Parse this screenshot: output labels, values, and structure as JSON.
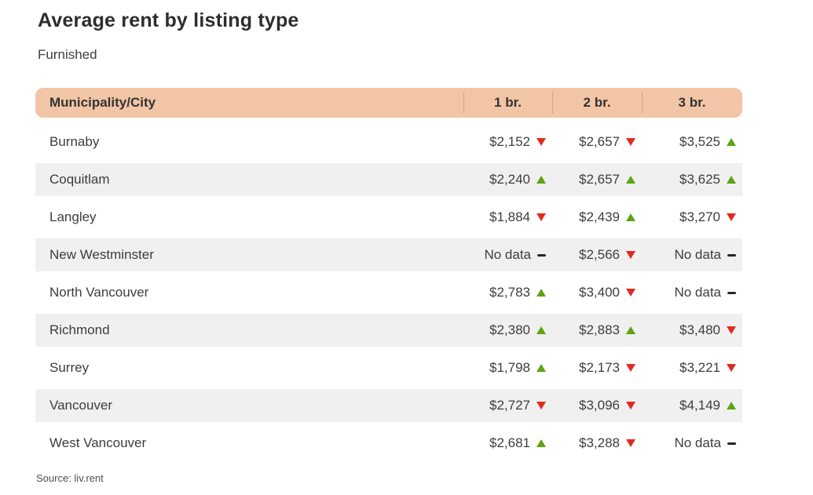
{
  "chart_data": {
    "type": "table",
    "title": "Average rent by listing type",
    "subtitle": "Furnished",
    "source": "Source: liv.rent",
    "header": {
      "city_column": "Municipality/City",
      "value_columns": [
        "1 br.",
        "2 br.",
        "3 br."
      ]
    },
    "rows": [
      {
        "city": "Burnaby",
        "cells": [
          {
            "text": "$2,152",
            "trend": "down"
          },
          {
            "text": "$2,657",
            "trend": "down"
          },
          {
            "text": "$3,525",
            "trend": "up"
          }
        ]
      },
      {
        "city": "Coquitlam",
        "cells": [
          {
            "text": "$2,240",
            "trend": "up"
          },
          {
            "text": "$2,657",
            "trend": "up"
          },
          {
            "text": "$3,625",
            "trend": "up"
          }
        ]
      },
      {
        "city": "Langley",
        "cells": [
          {
            "text": "$1,884",
            "trend": "down"
          },
          {
            "text": "$2,439",
            "trend": "up"
          },
          {
            "text": "$3,270",
            "trend": "down"
          }
        ]
      },
      {
        "city": "New Westminster",
        "cells": [
          {
            "text": "No data",
            "trend": "flat"
          },
          {
            "text": "$2,566",
            "trend": "down"
          },
          {
            "text": "No data",
            "trend": "flat"
          }
        ]
      },
      {
        "city": "North Vancouver",
        "cells": [
          {
            "text": "$2,783",
            "trend": "up"
          },
          {
            "text": "$3,400",
            "trend": "down"
          },
          {
            "text": "No data",
            "trend": "flat"
          }
        ]
      },
      {
        "city": "Richmond",
        "cells": [
          {
            "text": "$2,380",
            "trend": "up"
          },
          {
            "text": "$2,883",
            "trend": "up"
          },
          {
            "text": "$3,480",
            "trend": "down"
          }
        ]
      },
      {
        "city": "Surrey",
        "cells": [
          {
            "text": "$1,798",
            "trend": "up"
          },
          {
            "text": "$2,173",
            "trend": "down"
          },
          {
            "text": "$3,221",
            "trend": "down"
          }
        ]
      },
      {
        "city": "Vancouver",
        "cells": [
          {
            "text": "$2,727",
            "trend": "down"
          },
          {
            "text": "$3,096",
            "trend": "down"
          },
          {
            "text": "$4,149",
            "trend": "up"
          }
        ]
      },
      {
        "city": "West Vancouver",
        "cells": [
          {
            "text": "$2,681",
            "trend": "up"
          },
          {
            "text": "$3,288",
            "trend": "down"
          },
          {
            "text": "No data",
            "trend": "flat"
          }
        ]
      }
    ],
    "colors": {
      "header_bg": "#f2c5a6",
      "header_divider": "#dfa084",
      "stripe_bg": "#f0f0f0",
      "trend_up": "#5ca414",
      "trend_down": "#e02b1e",
      "trend_flat": "#262626",
      "text": "#3d3d3d"
    },
    "layout_hints": {
      "grid": false,
      "legend": "none",
      "value_alignment": "right"
    }
  }
}
